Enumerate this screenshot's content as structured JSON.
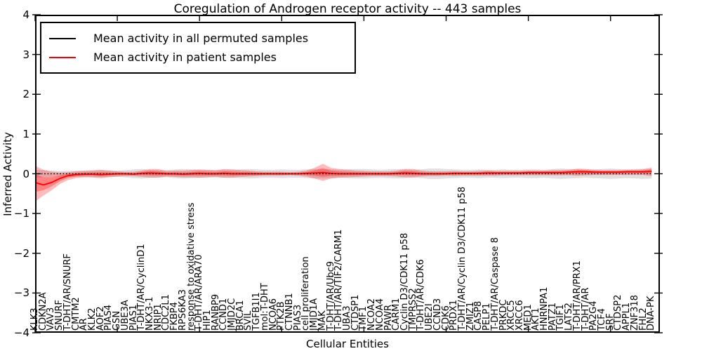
{
  "chart_data": {
    "type": "line",
    "title": "Coregulation of Androgen receptor activity -- 443 samples",
    "xlabel": "Cellular Entities",
    "ylabel": "Inferred Activity",
    "ylim": [
      -4,
      4
    ],
    "ytick_values": [
      4,
      3,
      2,
      1,
      0,
      -1,
      -2,
      -3,
      -4
    ],
    "ytick_labels": [
      "4",
      "3",
      "2",
      "1",
      "0",
      "−1",
      "−2",
      "−3",
      "−4"
    ],
    "x_major_tick_indices": [
      0,
      10,
      20,
      30,
      40,
      50,
      60,
      70
    ],
    "grid": false,
    "legend_position": "upper left",
    "colors": {
      "permuted_line": "#000000",
      "patient_line": "#ff0000",
      "permuted_band": "#bbbbbb",
      "patient_band": "#ff0000"
    },
    "categories": [
      "KLK3",
      "CDKN2A",
      "VAV3",
      "SNURF",
      "T-DHT/AR/SNURF",
      "CMTM2",
      "AR",
      "KLK2",
      "AOF2",
      "PIAS4",
      "GSN",
      "UBE3A",
      "PIAS1",
      "T-DHT/AR/CyclinD1",
      "NKX3-1",
      "NRIP1",
      "CDC2L1",
      "FKBP4",
      "RPS6KA3",
      "response to oxidative stress",
      "T-DHT/AR/ARA70",
      "HIP1",
      "RANBP9",
      "CCND1",
      "JMJD2C",
      "BRCA1",
      "SVIL",
      "TGFB1I1",
      "mol:T-DHT",
      "NCOA6",
      "PTK2B",
      "CTNNB1",
      "PIAS3",
      "cell proliferation",
      "JMJD1A",
      "MAK",
      "T-DHT/AR/Ubc9",
      "T-DHT/AR/TIF2/CARM1",
      "UBA3",
      "CTDSP1",
      "TMF1",
      "NCOA2",
      "NCOA4",
      "PAWR",
      "CARM1",
      "Cyclin D3/CDK11 p58",
      "TMPRSS2",
      "T-DHT/AR/CDK6",
      "UBE2I",
      "CCND3",
      "CDK6",
      "PRDX1",
      "T-DHT/AR/Cyclin D3/CDK11 p58",
      "ZMIZ1",
      "CASP8",
      "PELP1",
      "T-DHT/AR/Caspase 8",
      "PRKDC",
      "XRCC5",
      "XRCC6",
      "MED1",
      "AKT1",
      "HNRNPA1",
      "PATZ1",
      "TGIF1",
      "LATS2",
      "T-DHT/AR/PRX1",
      "T-DHT/AR",
      "PA2G4",
      "TCF4",
      "SRF",
      "CTDSP2",
      "APPL1",
      "ZNF318",
      "FHL2",
      "DNA-PK"
    ],
    "series": [
      {
        "role": "mean_permuted",
        "name": "Mean activity in all permuted samples",
        "color": "#000000",
        "values": [
          0,
          0,
          0,
          0,
          0,
          0,
          0,
          0,
          0,
          0,
          0,
          0,
          0,
          0,
          0,
          0,
          0,
          0,
          0,
          0,
          0,
          0,
          0,
          0,
          0,
          0,
          0,
          0,
          0,
          0,
          0,
          0,
          0,
          0,
          0,
          0,
          0,
          0,
          0,
          0,
          0,
          0,
          0,
          0,
          0,
          0,
          0,
          0,
          0,
          0,
          0,
          0,
          0,
          0,
          0,
          0,
          0,
          0,
          0,
          0,
          0,
          0,
          0,
          0,
          0,
          0,
          0,
          0,
          0,
          0,
          0,
          0,
          0,
          0,
          0,
          0
        ]
      },
      {
        "role": "band_permuted_halfwidth",
        "name": "Permuted samples band half-width (std)",
        "values": [
          0.1,
          0.09,
          0.08,
          0.07,
          0.07,
          0.08,
          0.08,
          0.09,
          0.09,
          0.08,
          0.08,
          0.09,
          0.11,
          0.12,
          0.1,
          0.09,
          0.09,
          0.11,
          0.12,
          0.11,
          0.1,
          0.09,
          0.09,
          0.1,
          0.1,
          0.11,
          0.12,
          0.11,
          0.1,
          0.1,
          0.11,
          0.1,
          0.1,
          0.11,
          0.12,
          0.12,
          0.11,
          0.1,
          0.11,
          0.12,
          0.12,
          0.11,
          0.1,
          0.11,
          0.12,
          0.11,
          0.1,
          0.11,
          0.13,
          0.13,
          0.12,
          0.11,
          0.1,
          0.1,
          0.11,
          0.1,
          0.1,
          0.11,
          0.1,
          0.1,
          0.11,
          0.11,
          0.1,
          0.12,
          0.13,
          0.12,
          0.11,
          0.1,
          0.11,
          0.12,
          0.13,
          0.12,
          0.11,
          0.12,
          0.13,
          0.12
        ]
      },
      {
        "role": "mean_patient",
        "name": "Mean activity in patient samples",
        "color": "#ff0000",
        "values": [
          -0.22,
          -0.28,
          -0.22,
          -0.12,
          -0.05,
          -0.02,
          -0.01,
          -0.01,
          -0.02,
          -0.01,
          0,
          0,
          -0.01,
          0.01,
          0.02,
          0.01,
          0,
          0,
          -0.01,
          0,
          0.01,
          0,
          0,
          0.01,
          0,
          0,
          0,
          0,
          0,
          0,
          0,
          0,
          0,
          0.01,
          0.02,
          0.03,
          0.01,
          0,
          0,
          0,
          0,
          0,
          0,
          0,
          0.01,
          0.02,
          0.01,
          0,
          0,
          0,
          0,
          0.01,
          0.01,
          0.01,
          0.01,
          0.02,
          0.02,
          0.02,
          0.02,
          0.02,
          0.03,
          0.03,
          0.03,
          0.03,
          0.03,
          0.04,
          0.05,
          0.05,
          0.04,
          0.04,
          0.04,
          0.04,
          0.05,
          0.05,
          0.05,
          0.06
        ]
      },
      {
        "role": "band_patient_upper",
        "name": "Patient samples band upper bound",
        "values": [
          0.2,
          0.1,
          0.05,
          0.03,
          0.04,
          0.06,
          0.07,
          0.08,
          0.1,
          0.08,
          0.06,
          0.05,
          0.05,
          0.08,
          0.12,
          0.12,
          0.07,
          0.08,
          0.08,
          0.09,
          0.11,
          0.1,
          0.09,
          0.12,
          0.11,
          0.09,
          0.08,
          0.06,
          0.05,
          0.05,
          0.05,
          0.04,
          0.05,
          0.08,
          0.15,
          0.25,
          0.15,
          0.12,
          0.1,
          0.08,
          0.07,
          0.06,
          0.06,
          0.06,
          0.08,
          0.12,
          0.12,
          0.08,
          0.06,
          0.06,
          0.06,
          0.07,
          0.06,
          0.06,
          0.07,
          0.08,
          0.07,
          0.07,
          0.07,
          0.07,
          0.08,
          0.08,
          0.08,
          0.09,
          0.09,
          0.1,
          0.13,
          0.12,
          0.1,
          0.09,
          0.09,
          0.09,
          0.1,
          0.1,
          0.11,
          0.16
        ]
      },
      {
        "role": "band_patient_lower",
        "name": "Patient samples band lower bound",
        "values": [
          -0.7,
          -0.55,
          -0.42,
          -0.26,
          -0.16,
          -0.11,
          -0.09,
          -0.09,
          -0.11,
          -0.09,
          -0.07,
          -0.06,
          -0.06,
          -0.08,
          -0.1,
          -0.1,
          -0.07,
          -0.08,
          -0.09,
          -0.09,
          -0.1,
          -0.09,
          -0.08,
          -0.1,
          -0.1,
          -0.08,
          -0.07,
          -0.06,
          -0.05,
          -0.05,
          -0.05,
          -0.04,
          -0.05,
          -0.07,
          -0.12,
          -0.18,
          -0.12,
          -0.1,
          -0.09,
          -0.08,
          -0.07,
          -0.06,
          -0.06,
          -0.06,
          -0.07,
          -0.09,
          -0.09,
          -0.07,
          -0.06,
          -0.06,
          -0.05,
          -0.06,
          -0.05,
          -0.05,
          -0.05,
          -0.05,
          -0.05,
          -0.04,
          -0.04,
          -0.04,
          -0.04,
          -0.04,
          -0.04,
          -0.04,
          -0.04,
          -0.04,
          -0.05,
          -0.04,
          -0.03,
          -0.03,
          -0.03,
          -0.03,
          -0.03,
          -0.03,
          -0.03,
          -0.06
        ]
      }
    ]
  }
}
